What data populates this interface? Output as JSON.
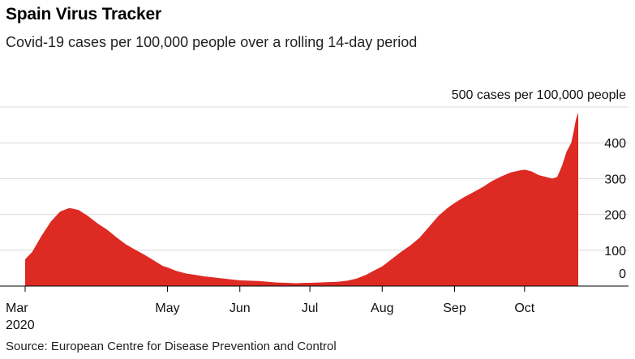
{
  "title": "Spain Virus Tracker",
  "subtitle": "Covid-19 cases per 100,000 people over a rolling 14-day period",
  "source": "Source: European Centre for Disease Prevention and Control",
  "colors": {
    "area": "#dd2a23",
    "grid": "#d9d9d9",
    "axis": "#000000"
  },
  "chart_data": {
    "type": "area",
    "y_axis_caption": "500 cases per 100,000 people",
    "ylim": [
      0,
      500
    ],
    "yticks": [
      {
        "value": 400,
        "label": "400"
      },
      {
        "value": 300,
        "label": "300"
      },
      {
        "value": 200,
        "label": "200"
      },
      {
        "value": 100,
        "label": "100"
      },
      {
        "value": 0,
        "label": "0"
      }
    ],
    "xlim": [
      "2020-03-01",
      "2020-10-24"
    ],
    "xticks": [
      {
        "date": "2020-03-01",
        "label": "Mar",
        "sublabel": "2020"
      },
      {
        "date": "2020-05-01",
        "label": "May"
      },
      {
        "date": "2020-06-01",
        "label": "Jun"
      },
      {
        "date": "2020-07-01",
        "label": "Jul"
      },
      {
        "date": "2020-08-01",
        "label": "Aug"
      },
      {
        "date": "2020-09-01",
        "label": "Sep"
      },
      {
        "date": "2020-10-01",
        "label": "Oct"
      }
    ],
    "series": [
      {
        "points": [
          [
            "2020-03-01",
            75
          ],
          [
            "2020-03-04",
            95
          ],
          [
            "2020-03-08",
            140
          ],
          [
            "2020-03-12",
            180
          ],
          [
            "2020-03-16",
            208
          ],
          [
            "2020-03-20",
            218
          ],
          [
            "2020-03-24",
            212
          ],
          [
            "2020-03-28",
            195
          ],
          [
            "2020-04-01",
            175
          ],
          [
            "2020-04-05",
            158
          ],
          [
            "2020-04-09",
            137
          ],
          [
            "2020-04-13",
            117
          ],
          [
            "2020-04-17",
            102
          ],
          [
            "2020-04-21",
            88
          ],
          [
            "2020-04-25",
            72
          ],
          [
            "2020-04-29",
            56
          ],
          [
            "2020-05-01",
            52
          ],
          [
            "2020-05-05",
            42
          ],
          [
            "2020-05-09",
            35
          ],
          [
            "2020-05-13",
            31
          ],
          [
            "2020-05-17",
            27
          ],
          [
            "2020-05-21",
            24
          ],
          [
            "2020-05-25",
            21
          ],
          [
            "2020-05-29",
            18
          ],
          [
            "2020-06-01",
            16
          ],
          [
            "2020-06-05",
            15
          ],
          [
            "2020-06-09",
            14
          ],
          [
            "2020-06-13",
            12
          ],
          [
            "2020-06-17",
            10
          ],
          [
            "2020-06-21",
            9
          ],
          [
            "2020-06-25",
            8
          ],
          [
            "2020-06-29",
            9
          ],
          [
            "2020-07-01",
            9
          ],
          [
            "2020-07-05",
            10
          ],
          [
            "2020-07-09",
            11
          ],
          [
            "2020-07-13",
            12
          ],
          [
            "2020-07-17",
            15
          ],
          [
            "2020-07-21",
            21
          ],
          [
            "2020-07-25",
            31
          ],
          [
            "2020-07-29",
            45
          ],
          [
            "2020-08-01",
            55
          ],
          [
            "2020-08-05",
            75
          ],
          [
            "2020-08-09",
            95
          ],
          [
            "2020-08-13",
            113
          ],
          [
            "2020-08-17",
            135
          ],
          [
            "2020-08-21",
            165
          ],
          [
            "2020-08-25",
            195
          ],
          [
            "2020-08-29",
            218
          ],
          [
            "2020-09-01",
            232
          ],
          [
            "2020-09-05",
            248
          ],
          [
            "2020-09-09",
            262
          ],
          [
            "2020-09-13",
            276
          ],
          [
            "2020-09-17",
            293
          ],
          [
            "2020-09-21",
            306
          ],
          [
            "2020-09-25",
            317
          ],
          [
            "2020-09-29",
            323
          ],
          [
            "2020-10-01",
            325
          ],
          [
            "2020-10-04",
            320
          ],
          [
            "2020-10-07",
            310
          ],
          [
            "2020-10-10",
            305
          ],
          [
            "2020-10-13",
            300
          ],
          [
            "2020-10-15",
            305
          ],
          [
            "2020-10-17",
            335
          ],
          [
            "2020-10-19",
            375
          ],
          [
            "2020-10-21",
            400
          ],
          [
            "2020-10-22",
            430
          ],
          [
            "2020-10-23",
            465
          ],
          [
            "2020-10-24",
            485
          ]
        ]
      }
    ]
  }
}
